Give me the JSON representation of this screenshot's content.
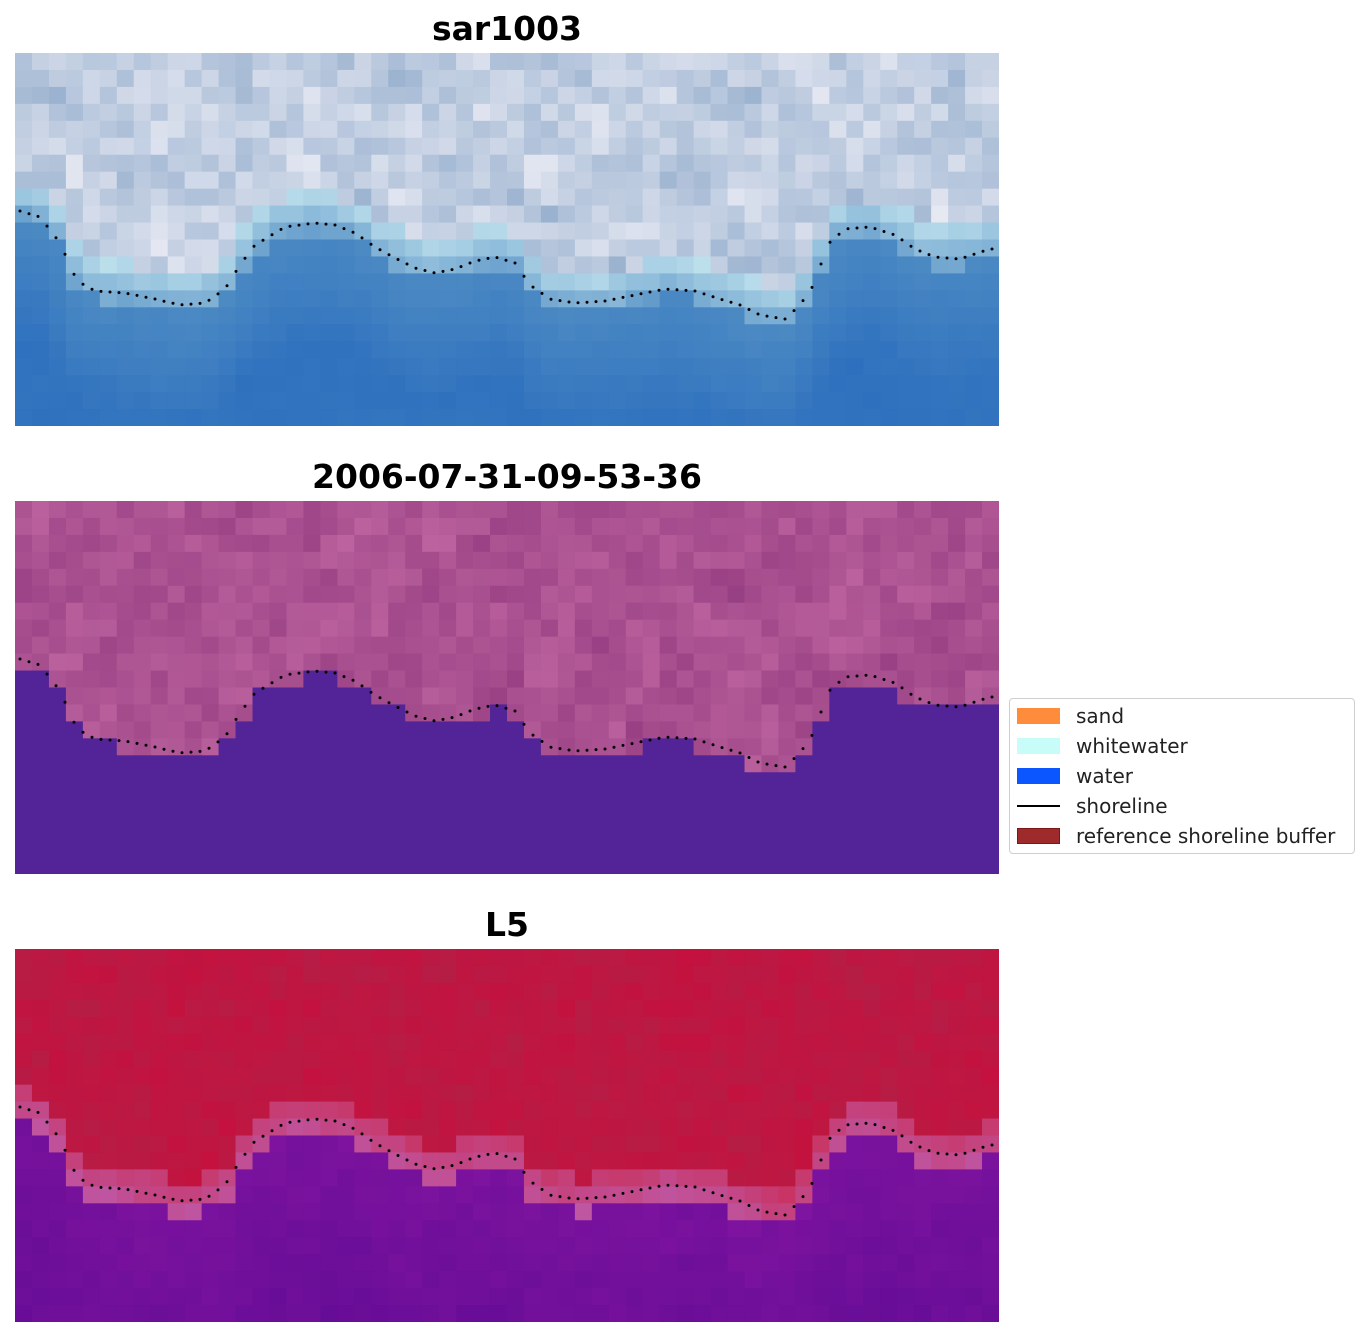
{
  "panels": [
    {
      "title": "sar1003",
      "style": "rgb"
    },
    {
      "title": "2006-07-31-09-53-36",
      "style": "classified"
    },
    {
      "title": "L5",
      "style": "index"
    }
  ],
  "legend": {
    "items": [
      {
        "label": "sand",
        "color": "#ff8c3a",
        "kind": "patch"
      },
      {
        "label": "whitewater",
        "color": "#c8fcf8",
        "kind": "patch"
      },
      {
        "label": "water",
        "color": "#0c56ff",
        "kind": "patch"
      },
      {
        "label": "shoreline",
        "color": "#000000",
        "kind": "line"
      },
      {
        "label": "reference shoreline buffer",
        "color": "#9e2a2b",
        "kind": "patch"
      }
    ]
  }
}
